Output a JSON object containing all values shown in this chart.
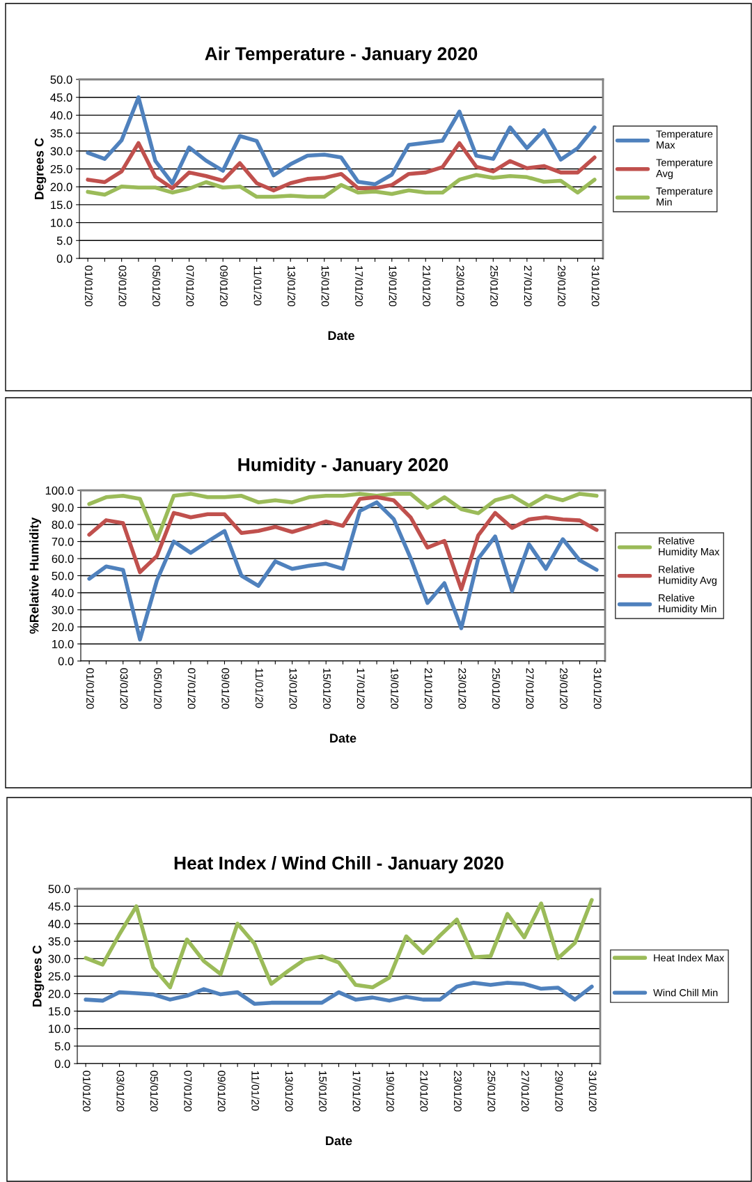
{
  "chart_data": [
    {
      "type": "line",
      "title": "Air Temperature - January 2020",
      "xlabel": "Date",
      "ylabel": "Degrees C",
      "categories": [
        "01/01/20",
        null,
        "03/01/20",
        null,
        "05/01/20",
        null,
        "07/01/20",
        null,
        "09/01/20",
        null,
        "11/01/20",
        null,
        "13/01/20",
        null,
        "15/01/20",
        null,
        "17/01/20",
        null,
        "19/01/20",
        null,
        "21/01/20",
        null,
        "23/01/20",
        null,
        "25/01/20",
        null,
        "27/01/20",
        null,
        "29/01/20",
        null,
        "31/01/20"
      ],
      "series": [
        {
          "name": "Temperature Max",
          "color": "#4f81bd",
          "values": [
            29.5,
            27.8,
            33,
            45,
            27.2,
            21,
            31,
            27.3,
            24.5,
            34.2,
            32.8,
            23.2,
            26.3,
            28.7,
            29,
            28.2,
            21.4,
            20.7,
            23.4,
            31.7,
            32.3,
            32.9,
            41,
            28.7,
            27.8,
            36.6,
            30.8,
            35.8,
            27.6,
            30.8,
            36.6
          ]
        },
        {
          "name": "Temperature Avg",
          "color": "#c0504d",
          "values": [
            22,
            21.3,
            24.3,
            32.2,
            22.8,
            19.6,
            24,
            23,
            21.7,
            26.6,
            21,
            19,
            21,
            22.2,
            22.5,
            23.6,
            19.6,
            19.6,
            20.5,
            23.6,
            24,
            25.5,
            32.2,
            25.6,
            24.3,
            27.2,
            25.2,
            25.8,
            24,
            24,
            28.2
          ]
        },
        {
          "name": "Temperature Min",
          "color": "#9bbb59",
          "values": [
            18.6,
            17.8,
            20.1,
            19.8,
            19.8,
            18.4,
            19.5,
            21.3,
            19.8,
            20.1,
            17.2,
            17.2,
            17.5,
            17.2,
            17.2,
            20.5,
            18.4,
            18.7,
            18,
            19,
            18.4,
            18.4,
            22,
            23.3,
            22.5,
            23,
            22.7,
            21.4,
            21.7,
            18.4,
            22
          ]
        }
      ],
      "ylim": [
        0,
        50
      ],
      "yticks": [
        {
          "value": 0,
          "label": "0.0"
        },
        {
          "value": 5,
          "label": "5.0"
        },
        {
          "value": 10,
          "label": "10.0"
        },
        {
          "value": 15,
          "label": "15.0"
        },
        {
          "value": 20,
          "label": "20.0"
        },
        {
          "value": 25,
          "label": "25.0"
        },
        {
          "value": 30,
          "label": "30.0"
        },
        {
          "value": 35,
          "label": "35.0"
        },
        {
          "value": 40,
          "label": "40.0"
        },
        {
          "value": 45,
          "label": "45.0"
        },
        {
          "value": 50,
          "label": "50.0"
        }
      ],
      "grid": "y",
      "legend": "right",
      "marker": "none",
      "line_style": "solid"
    },
    {
      "type": "line",
      "title": "Humidity - January 2020",
      "xlabel": "Date",
      "ylabel": "%Relative Humidity",
      "categories": [
        "01/01/20",
        null,
        "03/01/20",
        null,
        "05/01/20",
        null,
        "07/01/20",
        null,
        "09/01/20",
        null,
        "11/01/20",
        null,
        "13/01/20",
        null,
        "15/01/20",
        null,
        "17/01/20",
        null,
        "19/01/20",
        null,
        "21/01/20",
        null,
        "23/01/20",
        null,
        "25/01/20",
        null,
        "27/01/20",
        null,
        "29/01/20",
        null,
        "31/01/20"
      ],
      "series": [
        {
          "name": "Relative Humidity Max",
          "color": "#9bbb59",
          "values": [
            92,
            96,
            96.8,
            95,
            71,
            96.8,
            98,
            96,
            96,
            96.8,
            93,
            94.2,
            93,
            96,
            96.8,
            96.8,
            98,
            96.8,
            98,
            98,
            89.8,
            96,
            89,
            86.6,
            94.2,
            96.8,
            91,
            96.8,
            94.2,
            98,
            96.8
          ]
        },
        {
          "name": "Relative Humidity Avg",
          "color": "#c0504d",
          "values": [
            74,
            82.5,
            80.8,
            52,
            61.5,
            86.8,
            84.2,
            86,
            86,
            75,
            76.2,
            78.6,
            75.6,
            78.6,
            81.8,
            79.2,
            95,
            96,
            94.2,
            84.2,
            66.5,
            70.4,
            42,
            73.6,
            86.8,
            78,
            83,
            84.2,
            83,
            82.4,
            76.8
          ]
        },
        {
          "name": "Relative Humidity Min",
          "color": "#4f81bd",
          "values": [
            48.2,
            55.4,
            53.4,
            12.6,
            47.2,
            70,
            63.4,
            70,
            76.2,
            50,
            44,
            58.4,
            54,
            55.8,
            57,
            54,
            88,
            93,
            83.2,
            60.4,
            34,
            45.6,
            19.2,
            60,
            73,
            41,
            68.4,
            54,
            71.4,
            59,
            53.4
          ]
        }
      ],
      "ylim": [
        0,
        100
      ],
      "yticks": [
        {
          "value": 0,
          "label": "0.0"
        },
        {
          "value": 10,
          "label": "10.0"
        },
        {
          "value": 20,
          "label": "20.0"
        },
        {
          "value": 30,
          "label": "30.0"
        },
        {
          "value": 40,
          "label": "40.0"
        },
        {
          "value": 50,
          "label": "50.0"
        },
        {
          "value": 60,
          "label": "60.0"
        },
        {
          "value": 70,
          "label": "70.0"
        },
        {
          "value": 80,
          "label": "80.0"
        },
        {
          "value": 90,
          "label": "90.0"
        },
        {
          "value": 100,
          "label": "100.0"
        }
      ],
      "grid": "y",
      "legend": "right",
      "marker": "none",
      "line_style": "solid"
    },
    {
      "type": "line",
      "title": "Heat Index / Wind Chill - January 2020",
      "xlabel": "Date",
      "ylabel": "Degrees C",
      "categories": [
        "01/01/20",
        null,
        "03/01/20",
        null,
        "05/01/20",
        null,
        "07/01/20",
        null,
        "09/01/20",
        null,
        "11/01/20",
        null,
        "13/01/20",
        null,
        "15/01/20",
        null,
        "17/01/20",
        null,
        "19/01/20",
        null,
        "21/01/20",
        null,
        "23/01/20",
        null,
        "25/01/20",
        null,
        "27/01/20",
        null,
        "29/01/20",
        null,
        "31/01/20"
      ],
      "series": [
        {
          "name": "Heat Index Max",
          "color": "#9bbb59",
          "values": [
            30.2,
            28.3,
            37,
            45,
            27.5,
            21.8,
            35.5,
            29.3,
            25.6,
            40,
            34.3,
            22.8,
            26.5,
            29.8,
            30.7,
            28.9,
            22.5,
            21.8,
            24.6,
            36.4,
            31.6,
            36.6,
            41.2,
            30.4,
            30.7,
            42.8,
            36.1,
            45.8,
            30.1,
            34.5,
            46.8
          ]
        },
        {
          "name": "Wind Chill Min",
          "color": "#4f81bd",
          "values": [
            18.3,
            18,
            20.4,
            20.1,
            19.8,
            18.3,
            19.4,
            21.3,
            19.8,
            20.4,
            17.1,
            17.4,
            17.4,
            17.4,
            17.4,
            20.4,
            18.3,
            18.9,
            18,
            19.1,
            18.3,
            18.3,
            22,
            23.1,
            22.5,
            23.1,
            22.8,
            21.4,
            21.7,
            18.3,
            22
          ]
        }
      ],
      "ylim": [
        0,
        50
      ],
      "yticks": [
        {
          "value": 0,
          "label": "0.0"
        },
        {
          "value": 5,
          "label": "5.0"
        },
        {
          "value": 10,
          "label": "10.0"
        },
        {
          "value": 15,
          "label": "15.0"
        },
        {
          "value": 20,
          "label": "20.0"
        },
        {
          "value": 25,
          "label": "25.0"
        },
        {
          "value": 30,
          "label": "30.0"
        },
        {
          "value": 35,
          "label": "35.0"
        },
        {
          "value": 40,
          "label": "40.0"
        },
        {
          "value": 45,
          "label": "45.0"
        },
        {
          "value": 50,
          "label": "50.0"
        }
      ],
      "grid": "y",
      "legend": "right",
      "marker": "none",
      "line_style": "solid"
    }
  ]
}
